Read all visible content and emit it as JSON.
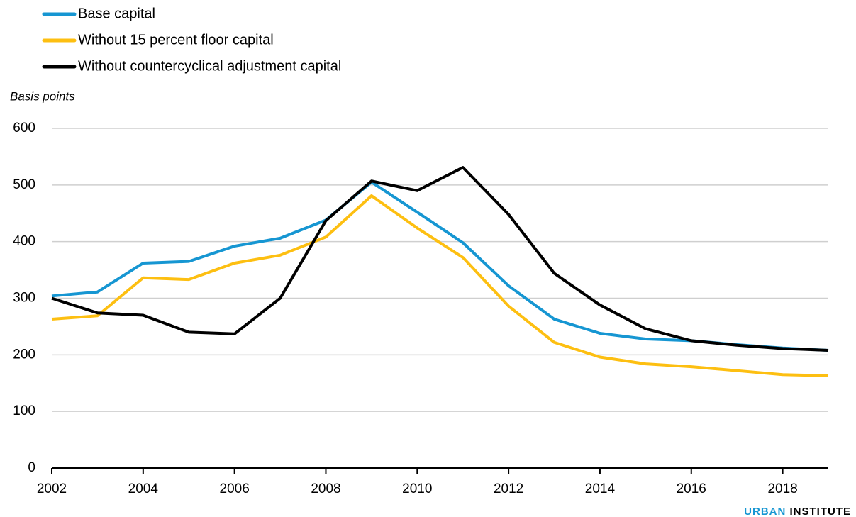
{
  "chart_data": {
    "type": "line",
    "y_axis_label": "Basis points",
    "x": [
      2002,
      2003,
      2004,
      2005,
      2006,
      2007,
      2008,
      2009,
      2010,
      2011,
      2012,
      2013,
      2014,
      2015,
      2016,
      2017,
      2018,
      2019
    ],
    "series": [
      {
        "name": "Base capital",
        "color": "#1696d2",
        "values": [
          304,
          311,
          362,
          365,
          392,
          406,
          438,
          505,
          452,
          398,
          322,
          263,
          238,
          228,
          225,
          218,
          212,
          208
        ]
      },
      {
        "name": "Without 15 percent floor capital",
        "color": "#fdbf11",
        "values": [
          263,
          269,
          336,
          333,
          362,
          376,
          408,
          481,
          424,
          372,
          286,
          222,
          196,
          184,
          179,
          172,
          165,
          163
        ]
      },
      {
        "name": "Without countercyclical adjustment capital",
        "color": "#000000",
        "values": [
          300,
          274,
          270,
          240,
          237,
          300,
          437,
          507,
          490,
          531,
          448,
          344,
          288,
          246,
          225,
          217,
          211,
          208
        ]
      }
    ],
    "xlim": [
      2002,
      2019
    ],
    "xticks": [
      2002,
      2004,
      2006,
      2008,
      2010,
      2012,
      2014,
      2016,
      2018
    ],
    "ylim": [
      0,
      600
    ],
    "yticks": [
      0,
      100,
      200,
      300,
      400,
      500,
      600
    ],
    "grid": true,
    "source_brand": [
      "URBAN",
      "INSTITUTE"
    ],
    "source_brand_color": "#1696d2"
  }
}
